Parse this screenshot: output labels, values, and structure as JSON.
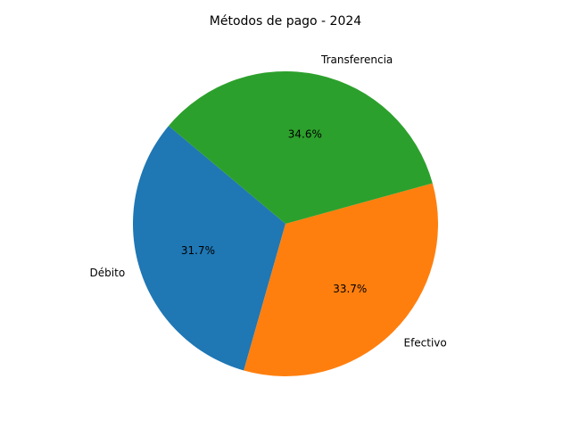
{
  "chart_data": {
    "type": "pie",
    "title": "Métodos de pago - 2024",
    "start_angle_deg": 140,
    "direction": "counterclockwise",
    "slices": [
      {
        "label": "Débito",
        "value": 31.7,
        "pct_label": "31.7%",
        "color": "#1f77b4"
      },
      {
        "label": "Efectivo",
        "value": 33.7,
        "pct_label": "33.7%",
        "color": "#ff7f0e"
      },
      {
        "label": "Transferencia",
        "value": 34.6,
        "pct_label": "34.6%",
        "color": "#2ca02c"
      }
    ]
  }
}
